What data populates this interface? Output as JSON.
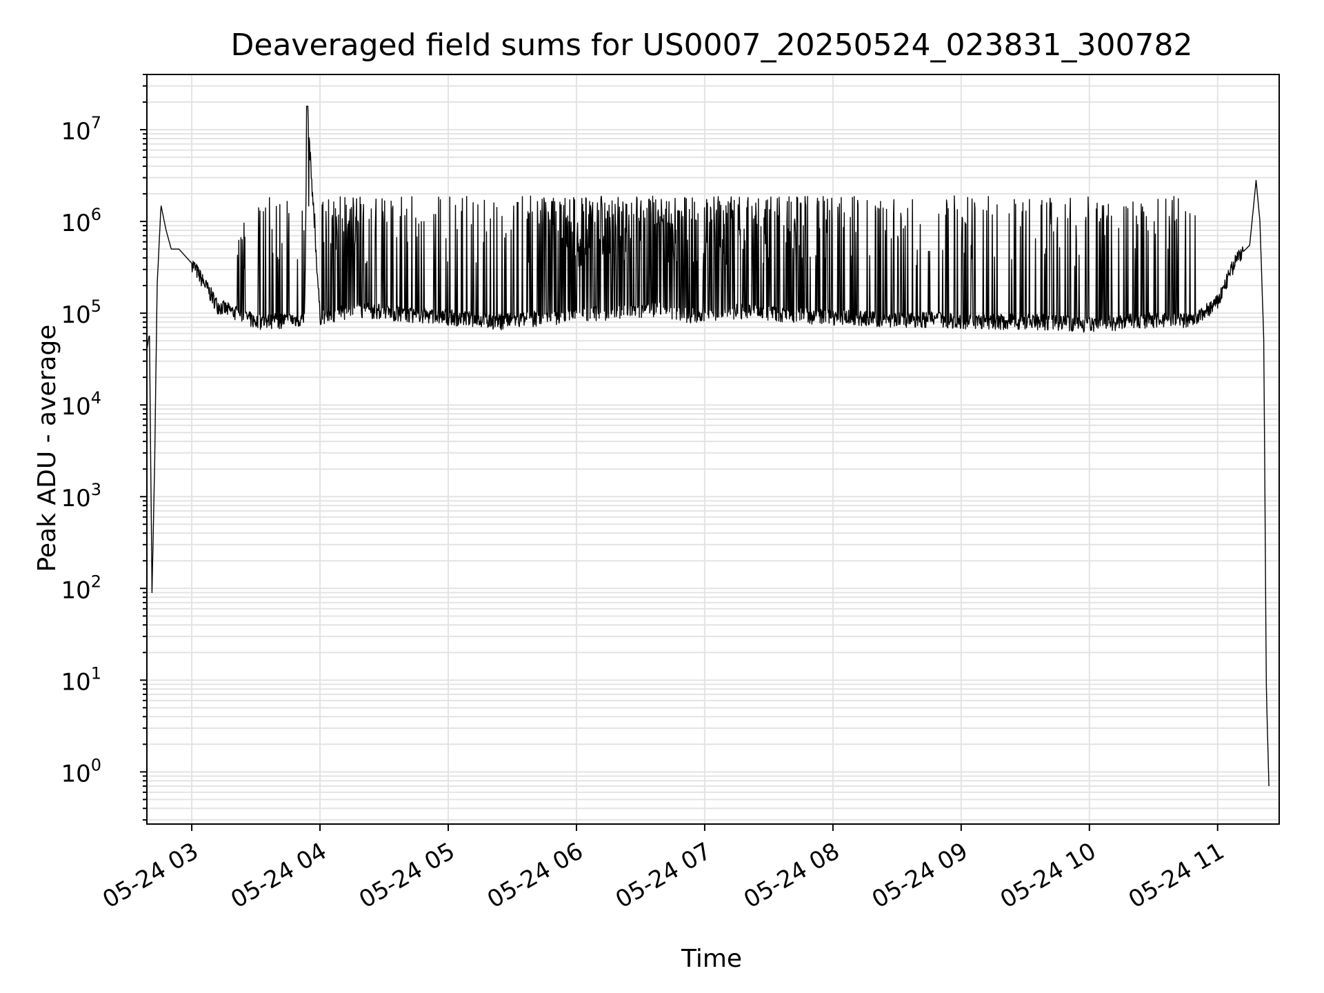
{
  "chart_data": {
    "type": "line",
    "title": "Deaveraged field sums for US0007_20250524_023831_300782",
    "xlabel": "Time",
    "ylabel": "Peak ADU - average",
    "x_tick_labels": [
      "05-24 03",
      "05-24 04",
      "05-24 05",
      "05-24 06",
      "05-24 07",
      "05-24 08",
      "05-24 09",
      "05-24 10",
      "05-24 11"
    ],
    "x_ticks_hours": [
      3,
      4,
      5,
      6,
      7,
      8,
      9,
      10,
      11
    ],
    "y_scale": "log",
    "y_ticks": [
      {
        "base": "10",
        "exp": "0"
      },
      {
        "base": "10",
        "exp": "1"
      },
      {
        "base": "10",
        "exp": "2"
      },
      {
        "base": "10",
        "exp": "3"
      },
      {
        "base": "10",
        "exp": "4"
      },
      {
        "base": "10",
        "exp": "5"
      },
      {
        "base": "10",
        "exp": "6"
      },
      {
        "base": "10",
        "exp": "7"
      }
    ],
    "xlim_hours": [
      2.65,
      11.48
    ],
    "ylim": [
      0.27,
      40000000
    ],
    "grid": true,
    "line_color": "#000000",
    "grid_color": "#e3e3e3",
    "series": [
      {
        "x_hours": [
          2.65,
          2.67,
          2.69,
          2.71,
          2.73,
          2.76,
          2.8,
          2.84,
          2.9,
          3.0,
          3.2,
          3.5,
          3.88,
          3.9,
          4.0,
          4.3,
          4.7,
          5.0,
          5.4,
          5.8,
          6.2,
          6.6,
          6.9,
          7.3,
          7.7,
          8.0,
          8.4,
          8.8,
          9.2,
          9.6,
          10.0,
          10.3,
          10.6,
          10.8,
          11.0,
          11.15,
          11.25,
          11.3,
          11.33,
          11.36,
          11.38,
          11.4
        ],
        "values": [
          40000,
          60000,
          90,
          2000,
          200000,
          1500000,
          800000,
          500000,
          500000,
          350000,
          120000,
          80000,
          85000,
          18000000,
          90000,
          110000,
          95000,
          90000,
          80000,
          90000,
          100000,
          110000,
          95000,
          105000,
          95000,
          90000,
          85000,
          85000,
          80000,
          80000,
          75000,
          80000,
          85000,
          80000,
          130000,
          400000,
          550000,
          2800000,
          1000000,
          50000,
          8,
          0.7
        ]
      }
    ]
  }
}
